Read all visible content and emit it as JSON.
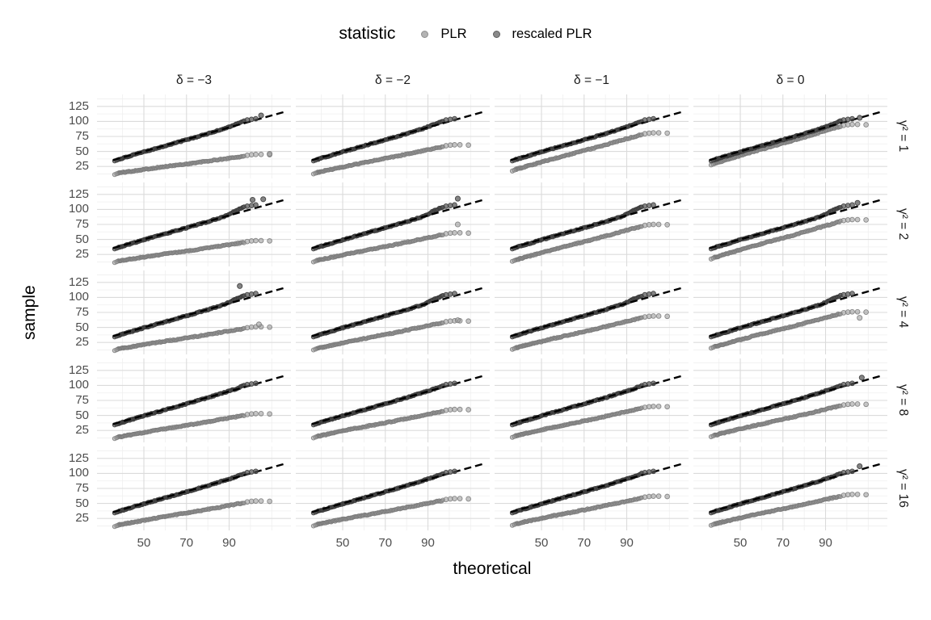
{
  "page": {
    "background": "#ffffff"
  },
  "legend": {
    "title": "statistic",
    "items": [
      {
        "label": "PLR",
        "key_color": "#b3b3b3",
        "key_border": "#8f8f8f"
      },
      {
        "label": "rescaled PLR",
        "key_color": "#8a8a8a",
        "key_border": "#5e5e5e"
      }
    ]
  },
  "axes": {
    "x_label": "theoretical",
    "y_label": "sample"
  },
  "chart_data": {
    "type": "scatter",
    "subtype": "qq-plot-facet-grid",
    "facet_cols": [
      "δ = −3",
      "δ = −2",
      "δ = −1",
      "δ = 0"
    ],
    "facet_rows": [
      "γ² = 1",
      "γ² = 2",
      "γ² = 4",
      "γ² = 8",
      "γ² = 16"
    ],
    "x_ticks": [
      50,
      70,
      90
    ],
    "x_minor": [
      40,
      60,
      80,
      100,
      110
    ],
    "y_ticks": [
      25,
      50,
      75,
      100,
      125
    ],
    "y_minor": [
      12.5,
      37.5,
      62.5,
      87.5,
      112.5,
      137.5
    ],
    "x_domain": [
      28,
      119
    ],
    "y_domain": [
      5,
      145
    ],
    "grid": {
      "major_color": "#dbdbdb",
      "minor_color": "#efefef"
    },
    "identity_line": {
      "x_start": 35.5,
      "x_end": 116,
      "dash": "9 5",
      "color": "#000000",
      "width": 2.4
    },
    "series": [
      {
        "name": "PLR",
        "fill": "rgba(150,150,150,0.55)",
        "stroke": "rgba(120,120,120,0.85)"
      },
      {
        "name": "rescaled PLR",
        "fill": "rgba(80,80,80,0.7)",
        "stroke": "rgba(55,55,55,0.9)"
      }
    ],
    "x_points_range": [
      38,
      97
    ],
    "points_per_series": 120,
    "tail_pattern": {
      "plr": [
        [
          1.5,
          1.5
        ],
        [
          3.5,
          2.5
        ],
        [
          5.5,
          3
        ],
        [
          8,
          3
        ],
        [
          12,
          2.5
        ]
      ],
      "rescaled": [
        [
          1.5,
          1.5
        ],
        [
          3.5,
          2.5
        ],
        [
          5.5,
          3.5
        ]
      ]
    },
    "panels": [
      {
        "row": "γ² = 1",
        "col": "δ = −3",
        "plr": {
          "y_start": 14,
          "y_end": 42,
          "extra": [
            [
              109,
              46
            ]
          ]
        },
        "rescaled": {
          "y_end": 101,
          "extra": [
            [
              105,
              110
            ]
          ]
        }
      },
      {
        "row": "γ² = 1",
        "col": "δ = −2",
        "plr": {
          "y_start": 15,
          "y_end": 58,
          "extra": []
        },
        "rescaled": {
          "y_end": 101,
          "extra": []
        }
      },
      {
        "row": "γ² = 1",
        "col": "δ = −1",
        "plr": {
          "y_start": 20,
          "y_end": 78,
          "extra": []
        },
        "rescaled": {
          "y_end": 101,
          "extra": []
        }
      },
      {
        "row": "γ² = 1",
        "col": "δ = 0",
        "plr": {
          "y_start": 30,
          "y_end": 92,
          "extra": []
        },
        "rescaled": {
          "y_end": 101,
          "extra": [
            [
              106,
              106
            ]
          ]
        }
      },
      {
        "row": "γ² = 2",
        "col": "δ = −3",
        "plr": {
          "y_start": 14,
          "y_end": 45,
          "extra": []
        },
        "rescaled": {
          "y_end": 104,
          "extra": [
            [
              101,
              116
            ],
            [
              106,
              117
            ]
          ]
        }
      },
      {
        "row": "γ² = 2",
        "col": "δ = −2",
        "plr": {
          "y_start": 15,
          "y_end": 58,
          "extra": [
            [
              104,
              75
            ]
          ]
        },
        "rescaled": {
          "y_end": 104,
          "extra": [
            [
              104,
              118
            ]
          ]
        }
      },
      {
        "row": "γ² = 2",
        "col": "δ = −1",
        "plr": {
          "y_start": 16,
          "y_end": 72,
          "extra": []
        },
        "rescaled": {
          "y_end": 104,
          "extra": []
        }
      },
      {
        "row": "γ² = 2",
        "col": "δ = 0",
        "plr": {
          "y_start": 20,
          "y_end": 80,
          "extra": []
        },
        "rescaled": {
          "y_end": 104,
          "extra": [
            [
              105,
              111
            ]
          ]
        }
      },
      {
        "row": "γ² = 4",
        "col": "δ = −3",
        "plr": {
          "y_start": 14,
          "y_end": 48,
          "extra": [
            [
              104,
              55
            ]
          ]
        },
        "rescaled": {
          "y_end": 103,
          "extra": [
            [
              95,
              119
            ]
          ]
        }
      },
      {
        "row": "γ² = 4",
        "col": "δ = −2",
        "plr": {
          "y_start": 15,
          "y_end": 58,
          "extra": [
            [
              104,
              62
            ]
          ]
        },
        "rescaled": {
          "y_end": 103,
          "extra": []
        }
      },
      {
        "row": "γ² = 4",
        "col": "δ = −1",
        "plr": {
          "y_start": 16,
          "y_end": 66,
          "extra": []
        },
        "rescaled": {
          "y_end": 103,
          "extra": []
        }
      },
      {
        "row": "γ² = 4",
        "col": "δ = 0",
        "plr": {
          "y_start": 18,
          "y_end": 73,
          "extra": [
            [
              106,
              66
            ]
          ]
        },
        "rescaled": {
          "y_end": 103,
          "extra": []
        }
      },
      {
        "row": "γ² = 8",
        "col": "δ = −3",
        "plr": {
          "y_start": 14,
          "y_end": 50,
          "extra": []
        },
        "rescaled": {
          "y_end": 100,
          "extra": []
        }
      },
      {
        "row": "γ² = 8",
        "col": "δ = −2",
        "plr": {
          "y_start": 15,
          "y_end": 57,
          "extra": []
        },
        "rescaled": {
          "y_end": 100,
          "extra": []
        }
      },
      {
        "row": "γ² = 8",
        "col": "δ = −1",
        "plr": {
          "y_start": 16,
          "y_end": 62,
          "extra": []
        },
        "rescaled": {
          "y_end": 100,
          "extra": []
        }
      },
      {
        "row": "γ² = 8",
        "col": "δ = 0",
        "plr": {
          "y_start": 17,
          "y_end": 66,
          "extra": []
        },
        "rescaled": {
          "y_end": 100,
          "extra": [
            [
              107,
              113
            ]
          ]
        }
      },
      {
        "row": "γ² = 16",
        "col": "δ = −3",
        "plr": {
          "y_start": 14,
          "y_end": 51,
          "extra": []
        },
        "rescaled": {
          "y_end": 100,
          "extra": []
        }
      },
      {
        "row": "γ² = 16",
        "col": "δ = −2",
        "plr": {
          "y_start": 15,
          "y_end": 55,
          "extra": []
        },
        "rescaled": {
          "y_end": 100,
          "extra": []
        }
      },
      {
        "row": "γ² = 16",
        "col": "δ = −1",
        "plr": {
          "y_start": 16,
          "y_end": 59,
          "extra": []
        },
        "rescaled": {
          "y_end": 100,
          "extra": []
        }
      },
      {
        "row": "γ² = 16",
        "col": "δ = 0",
        "plr": {
          "y_start": 16,
          "y_end": 62,
          "extra": []
        },
        "rescaled": {
          "y_end": 100,
          "extra": [
            [
              106,
              112
            ]
          ]
        }
      }
    ]
  }
}
